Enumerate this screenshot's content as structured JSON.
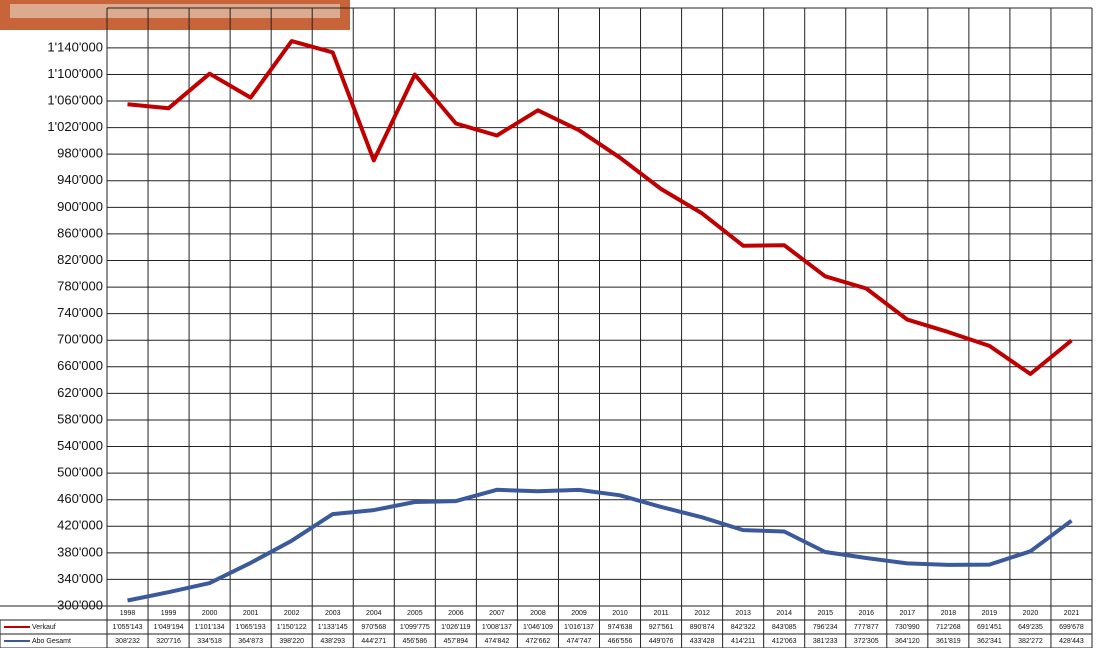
{
  "chart_data": {
    "type": "line",
    "categories": [
      "1998",
      "1999",
      "2000",
      "2001",
      "2002",
      "2003",
      "2004",
      "2005",
      "2006",
      "2007",
      "2008",
      "2009",
      "2010",
      "2011",
      "2012",
      "2013",
      "2014",
      "2015",
      "2016",
      "2017",
      "2018",
      "2019",
      "2020",
      "2021"
    ],
    "series": [
      {
        "name": "Verkauf",
        "color": "#c00000",
        "values": [
          1055143,
          1049194,
          1101134,
          1065193,
          1150122,
          1133145,
          970568,
          1099775,
          1026119,
          1008137,
          1046109,
          1016137,
          974638,
          927561,
          890874,
          842322,
          843085,
          796234,
          777877,
          730990,
          712268,
          691451,
          649235,
          699678
        ],
        "value_labels": [
          "1'055'143",
          "1'049'194",
          "1'101'134",
          "1'065'193",
          "1'150'122",
          "1'133'145",
          "970'568",
          "1'099'775",
          "1'026'119",
          "1'008'137",
          "1'046'109",
          "1'016'137",
          "974'638",
          "927'561",
          "890'874",
          "842'322",
          "843'085",
          "796'234",
          "777'877",
          "730'990",
          "712'268",
          "691'451",
          "649'235",
          "699'678"
        ]
      },
      {
        "name": "Abo Gesamt",
        "color": "#3a5a9c",
        "values": [
          308232,
          320716,
          334518,
          364873,
          398220,
          438293,
          444271,
          456586,
          457894,
          474842,
          472662,
          474747,
          466556,
          449076,
          433428,
          414211,
          412063,
          381233,
          372305,
          364120,
          361819,
          362341,
          382272,
          428443
        ],
        "value_labels": [
          "308'232",
          "320'716",
          "334'518",
          "364'873",
          "398'220",
          "438'293",
          "444'271",
          "456'586",
          "457'894",
          "474'842",
          "472'662",
          "474'747",
          "466'556",
          "449'076",
          "433'428",
          "414'211",
          "412'063",
          "381'233",
          "372'305",
          "364'120",
          "361'819",
          "362'341",
          "382'272",
          "428'443"
        ]
      }
    ],
    "ylim": [
      300000,
      1200000
    ],
    "yticks": [
      {
        "value": 300000,
        "label": "300'000"
      },
      {
        "value": 340000,
        "label": "340'000"
      },
      {
        "value": 380000,
        "label": "380'000"
      },
      {
        "value": 420000,
        "label": "420'000"
      },
      {
        "value": 460000,
        "label": "460'000"
      },
      {
        "value": 500000,
        "label": "500'000"
      },
      {
        "value": 540000,
        "label": "540'000"
      },
      {
        "value": 580000,
        "label": "580'000"
      },
      {
        "value": 620000,
        "label": "620'000"
      },
      {
        "value": 660000,
        "label": "660'000"
      },
      {
        "value": 700000,
        "label": "700'000"
      },
      {
        "value": 740000,
        "label": "740'000"
      },
      {
        "value": 780000,
        "label": "780'000"
      },
      {
        "value": 820000,
        "label": "820'000"
      },
      {
        "value": 860000,
        "label": "860'000"
      },
      {
        "value": 900000,
        "label": "900'000"
      },
      {
        "value": 940000,
        "label": "940'000"
      },
      {
        "value": 980000,
        "label": "980'000"
      },
      {
        "value": 1020000,
        "label": "1'020'000"
      },
      {
        "value": 1060000,
        "label": "1'060'000"
      },
      {
        "value": 1100000,
        "label": "1'100'000"
      },
      {
        "value": 1140000,
        "label": "1'140'000"
      }
    ],
    "grid": true
  }
}
